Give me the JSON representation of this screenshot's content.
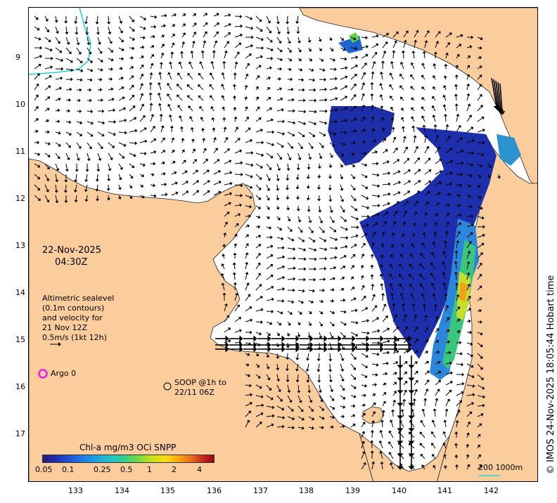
{
  "map": {
    "date": "22-Nov-2025",
    "time": "04:30Z",
    "legend_lines": [
      "Altimetric sealevel",
      "(0.1m contours)",
      "and velocity for",
      "21 Nov 12Z",
      "0.5m/s (1kt 12h)"
    ],
    "argo_label": "Argo 0",
    "soop_lines": [
      "SOOP @1h to",
      "22/11 06Z"
    ],
    "colorbar_title": "Chl-a mg/m3 OCi SNPP",
    "colorbar_ticks": [
      "0.05",
      "0.1",
      "0.25",
      "0.5",
      "1",
      "2",
      "4"
    ],
    "scale_label": "200  1000m",
    "copyright": "© IMOS 24-Nov-2025 18:05:44 Hobart time",
    "lon_ticks": [
      "133",
      "134",
      "135",
      "136",
      "137",
      "138",
      "139",
      "140",
      "141",
      "142"
    ],
    "lat_ticks": [
      "9",
      "10",
      "11",
      "12",
      "13",
      "14",
      "15",
      "16",
      "17"
    ],
    "colors": {
      "land": "#fbcd9c",
      "ocean": "#ffffff",
      "argo": "#e91ce6",
      "depth_contour": "#1fd4d4"
    },
    "icons": [
      "current-arrow",
      "argo-circle",
      "soop-circle"
    ]
  }
}
